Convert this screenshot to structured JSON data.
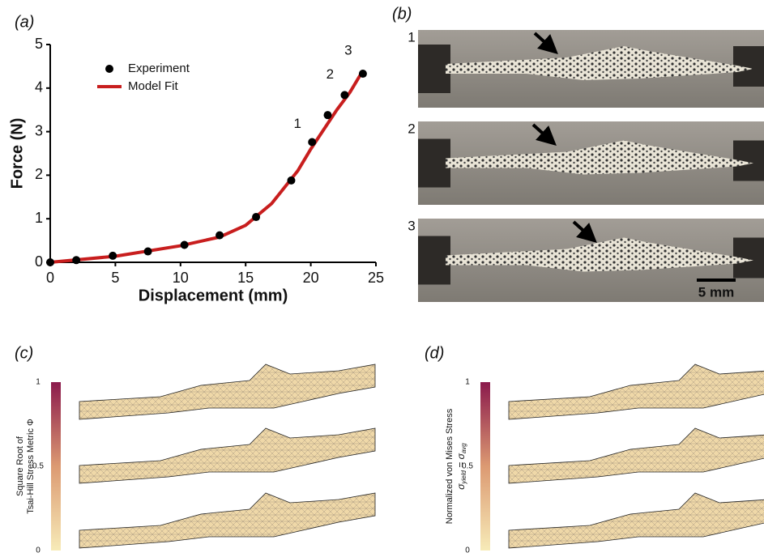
{
  "chart_data": {
    "type": "line",
    "xlabel": "Displacement (mm)",
    "ylabel": "Force (N)",
    "xlim": [
      0,
      25
    ],
    "xticks": [
      0,
      5,
      10,
      15,
      20,
      25
    ],
    "ylim": [
      0,
      5
    ],
    "yticks": [
      0,
      1,
      2,
      3,
      4,
      5
    ],
    "legend": "upper left",
    "series": [
      {
        "name": "Experiment",
        "color": "#000000",
        "mode": "markers",
        "x": [
          0,
          2,
          4.8,
          7.5,
          10.3,
          13,
          15.8,
          18.5,
          20.1,
          21.3,
          22.6,
          24
        ],
        "values": [
          0,
          0.05,
          0.15,
          0.25,
          0.4,
          0.62,
          1.04,
          1.88,
          2.76,
          3.38,
          3.84,
          4.33
        ]
      },
      {
        "name": "Model Fit",
        "color": "#c81e1e",
        "mode": "line",
        "x": [
          0,
          5,
          10,
          13,
          15,
          17,
          19,
          20,
          21,
          22,
          23,
          24
        ],
        "values": [
          0,
          0.14,
          0.38,
          0.58,
          0.85,
          1.35,
          2.1,
          2.6,
          3.05,
          3.5,
          3.9,
          4.4
        ]
      }
    ],
    "annotations": [
      "1",
      "2",
      "3"
    ]
  },
  "panel_labels": [
    "(a)",
    "(b)",
    "(c)",
    "(d)"
  ],
  "photo_labels": [
    "1",
    "2",
    "3"
  ],
  "scale_bar": "5 mm",
  "colorbars": [
    {
      "label": [
        "Square Root of",
        "Tsai-Hill Stress Metric Φ"
      ],
      "lim": [
        0,
        1
      ],
      "ticks": [
        0,
        0.5,
        1
      ]
    },
    {
      "label": [
        "Normalized von Mises Stress",
        "σ",
        "yield",
        " = σ",
        "avg"
      ],
      "lim": [
        0,
        1
      ],
      "ticks": [
        0,
        0.5,
        1
      ]
    }
  ]
}
